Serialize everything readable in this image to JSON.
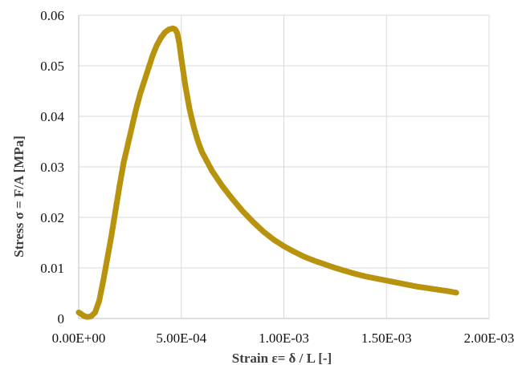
{
  "chart_data": {
    "type": "scatter",
    "title": "",
    "xlabel": "Strain ε= δ / L [-]",
    "ylabel": "Stress σ = F/A [MPa]",
    "xlim": [
      0,
      0.002
    ],
    "ylim": [
      0,
      0.06
    ],
    "x_ticks": [
      0,
      0.0005,
      0.001,
      0.0015,
      0.002
    ],
    "x_tick_labels": [
      "0.00E+00",
      "5.00E-04",
      "1.00E-03",
      "1.50E-03",
      "2.00E-03"
    ],
    "y_ticks": [
      0,
      0.01,
      0.02,
      0.03,
      0.04,
      0.05,
      0.06
    ],
    "y_tick_labels": [
      "0",
      "0.01",
      "0.02",
      "0.03",
      "0.04",
      "0.05",
      "0.06"
    ],
    "grid": true,
    "legend": "none",
    "series": [
      {
        "color": "#b8930e",
        "x": [
          0.0,
          1.2e-05,
          2.5e-05,
          4e-05,
          6e-05,
          8e-05,
          0.0001,
          0.00012,
          0.00014,
          0.00016,
          0.00018,
          0.0002,
          0.00022,
          0.00024,
          0.00026,
          0.00028,
          0.0003,
          0.00032,
          0.00034,
          0.00036,
          0.00038,
          0.0004,
          0.00042,
          0.00044,
          0.00046,
          0.00047,
          0.00048,
          0.00049,
          0.0005,
          0.00052,
          0.00054,
          0.00056,
          0.00058,
          0.0006,
          0.00065,
          0.0007,
          0.00075,
          0.0008,
          0.00085,
          0.0009,
          0.00095,
          0.001,
          0.00105,
          0.0011,
          0.00115,
          0.0012,
          0.00125,
          0.0013,
          0.00135,
          0.0014,
          0.00145,
          0.0015,
          0.00155,
          0.0016,
          0.00165,
          0.0017,
          0.00175,
          0.0018,
          0.00184
        ],
        "y": [
          0.0012,
          0.0009,
          0.0005,
          0.0003,
          0.0004,
          0.0012,
          0.0035,
          0.0075,
          0.012,
          0.0165,
          0.0215,
          0.0265,
          0.031,
          0.0345,
          0.038,
          0.0415,
          0.0445,
          0.047,
          0.0495,
          0.052,
          0.054,
          0.0555,
          0.0566,
          0.0572,
          0.0574,
          0.0572,
          0.0565,
          0.0545,
          0.0515,
          0.046,
          0.0415,
          0.038,
          0.0352,
          0.033,
          0.0292,
          0.0262,
          0.0236,
          0.0212,
          0.0191,
          0.0172,
          0.0156,
          0.0143,
          0.0132,
          0.0122,
          0.0114,
          0.0107,
          0.01,
          0.0094,
          0.0088,
          0.0083,
          0.0079,
          0.0075,
          0.0071,
          0.0067,
          0.0063,
          0.006,
          0.0057,
          0.0054,
          0.0051
        ]
      }
    ]
  }
}
